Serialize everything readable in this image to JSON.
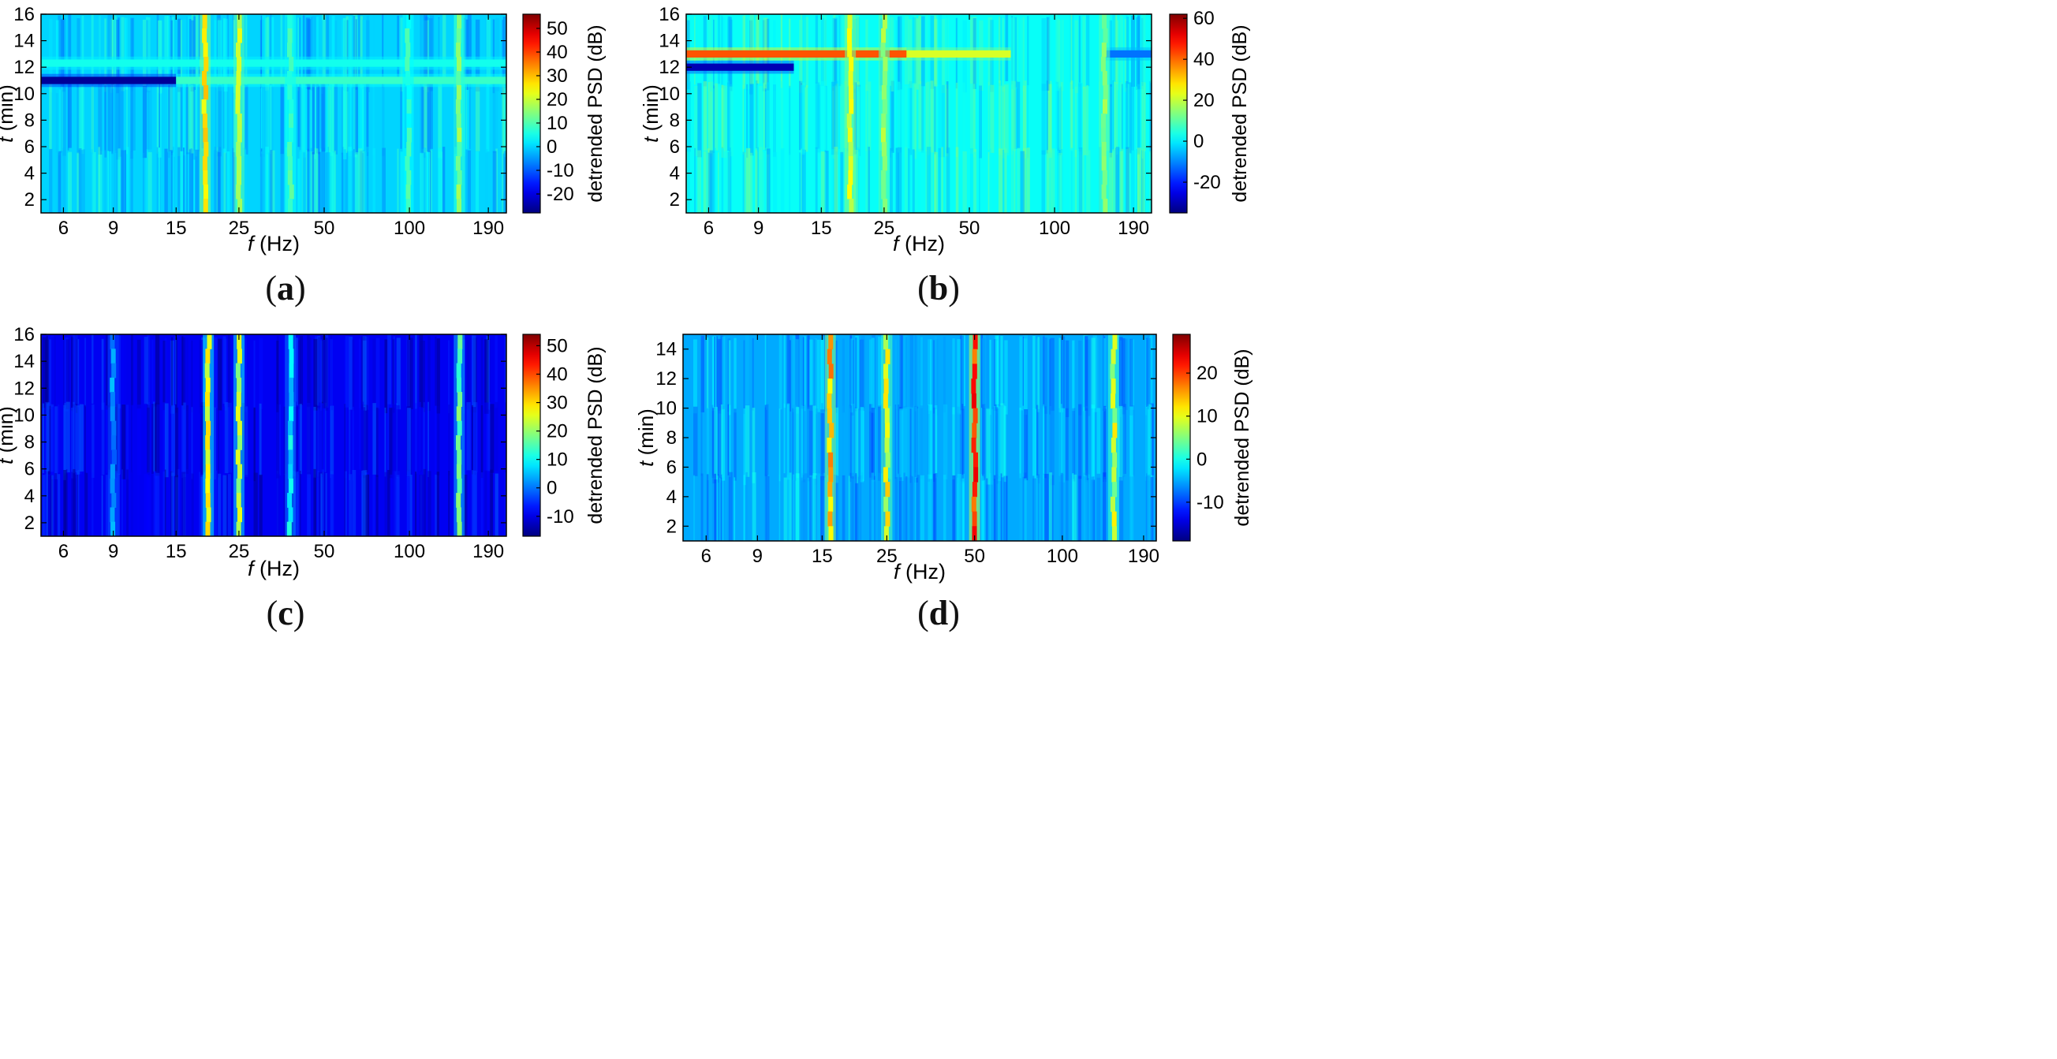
{
  "figure": {
    "panels": [
      {
        "id": "a",
        "caption_open": "(",
        "caption_letter": "a",
        "caption_close": ")",
        "xlabel_var": "f",
        "xlabel_unit": " (Hz)",
        "ylabel_var": "t",
        "ylabel_unit": " (min)",
        "colorbar_label": "detrended PSD (dB)"
      },
      {
        "id": "b",
        "caption_open": "(",
        "caption_letter": "b",
        "caption_close": ")",
        "xlabel_var": "f",
        "xlabel_unit": " (Hz)",
        "ylabel_var": "t",
        "ylabel_unit": " (min)",
        "colorbar_label": "detrended PSD (dB)"
      },
      {
        "id": "c",
        "caption_open": "(",
        "caption_letter": "c",
        "caption_close": ")",
        "xlabel_var": "f",
        "xlabel_unit": " (Hz)",
        "ylabel_var": "t",
        "ylabel_unit": " (min)",
        "colorbar_label": "detrended PSD (dB)"
      },
      {
        "id": "d",
        "caption_open": "(",
        "caption_letter": "d",
        "caption_close": ")",
        "xlabel_var": "f",
        "xlabel_unit": " (Hz)",
        "ylabel_var": "t",
        "ylabel_unit": " (min)",
        "colorbar_label": "detrended PSD (dB)"
      }
    ]
  },
  "chart_data": [
    {
      "type": "heatmap",
      "panel": "a",
      "title": "",
      "xlabel": "f (Hz)",
      "ylabel": "t (min)",
      "xscale": "log",
      "xlim": [
        5,
        220
      ],
      "ylim": [
        1,
        16
      ],
      "xticks": [
        6,
        9,
        15,
        25,
        50,
        100,
        190
      ],
      "yticks": [
        2,
        4,
        6,
        8,
        10,
        12,
        14,
        16
      ],
      "colorbar": {
        "label": "detrended PSD (dB)",
        "range": [
          -28,
          56
        ],
        "ticks": [
          -20,
          -10,
          0,
          10,
          20,
          30,
          40,
          50
        ]
      },
      "background_level_db": 0,
      "spectral_lines": [
        {
          "freq_hz": 19,
          "t_range": [
            1,
            16
          ],
          "level_db": 26
        },
        {
          "freq_hz": 25,
          "t_range": [
            1,
            16
          ],
          "level_db": 20
        },
        {
          "freq_hz": 38,
          "t_range": [
            1,
            16
          ],
          "level_db": 9
        },
        {
          "freq_hz": 99,
          "t_range": [
            1,
            16
          ],
          "level_db": 7
        },
        {
          "freq_hz": 150,
          "t_range": [
            1,
            16
          ],
          "level_db": 14
        }
      ],
      "time_bands": [
        {
          "t": 11,
          "f_range": [
            5,
            15
          ],
          "level_db": -26
        },
        {
          "t": 11,
          "f_range": [
            15,
            220
          ],
          "level_db": 8
        },
        {
          "t": 12.3,
          "f_range": [
            5,
            220
          ],
          "level_db": 5
        }
      ]
    },
    {
      "type": "heatmap",
      "panel": "b",
      "title": "",
      "xlabel": "f (Hz)",
      "ylabel": "t (min)",
      "xscale": "log",
      "xlim": [
        5,
        220
      ],
      "ylim": [
        1,
        16
      ],
      "xticks": [
        6,
        9,
        15,
        25,
        50,
        100,
        190
      ],
      "yticks": [
        2,
        4,
        6,
        8,
        10,
        12,
        14,
        16
      ],
      "colorbar": {
        "label": "detrended PSD (dB)",
        "range": [
          -35,
          62
        ],
        "ticks": [
          -20,
          0,
          20,
          40,
          60
        ]
      },
      "background_level_db": 2,
      "spectral_lines": [
        {
          "freq_hz": 19,
          "t_range": [
            1,
            16
          ],
          "level_db": 22
        },
        {
          "freq_hz": 25,
          "t_range": [
            1,
            16
          ],
          "level_db": 16
        },
        {
          "freq_hz": 150,
          "t_range": [
            1,
            16
          ],
          "level_db": 14
        }
      ],
      "time_bands": [
        {
          "t": 13,
          "f_range": [
            5,
            30
          ],
          "level_db": 42
        },
        {
          "t": 13,
          "f_range": [
            30,
            70
          ],
          "level_db": 22
        },
        {
          "t": 12,
          "f_range": [
            5,
            12
          ],
          "level_db": -30
        },
        {
          "t": 13,
          "f_range": [
            150,
            220
          ],
          "level_db": -12
        }
      ]
    },
    {
      "type": "heatmap",
      "panel": "c",
      "title": "",
      "xlabel": "f (Hz)",
      "ylabel": "t (min)",
      "xscale": "log",
      "xlim": [
        5,
        220
      ],
      "ylim": [
        1,
        16
      ],
      "xticks": [
        6,
        9,
        15,
        25,
        50,
        100,
        190
      ],
      "yticks": [
        2,
        4,
        6,
        8,
        10,
        12,
        14,
        16
      ],
      "colorbar": {
        "label": "detrended PSD (dB)",
        "range": [
          -17,
          54
        ],
        "ticks": [
          -10,
          0,
          10,
          20,
          30,
          40,
          50
        ]
      },
      "background_level_db": -9,
      "spectral_lines": [
        {
          "freq_hz": 9,
          "t_range": [
            1,
            16
          ],
          "level_db": 2
        },
        {
          "freq_hz": 19.5,
          "t_range": [
            1,
            16
          ],
          "level_db": 26
        },
        {
          "freq_hz": 25,
          "t_range": [
            1,
            16
          ],
          "level_db": 22
        },
        {
          "freq_hz": 38,
          "t_range": [
            1,
            16
          ],
          "level_db": 8
        },
        {
          "freq_hz": 150,
          "t_range": [
            1,
            16
          ],
          "level_db": 16
        }
      ],
      "time_bands": []
    },
    {
      "type": "heatmap",
      "panel": "d",
      "title": "",
      "xlabel": "f (Hz)",
      "ylabel": "t (min)",
      "xscale": "log",
      "xlim": [
        5,
        210
      ],
      "ylim": [
        1,
        15
      ],
      "xticks": [
        6,
        9,
        15,
        25,
        50,
        100,
        190
      ],
      "yticks": [
        2,
        4,
        6,
        8,
        10,
        12,
        14
      ],
      "colorbar": {
        "label": "detrended PSD (dB)",
        "range": [
          -19,
          29
        ],
        "ticks": [
          -10,
          0,
          10,
          20
        ]
      },
      "background_level_db": -5,
      "spectral_lines": [
        {
          "freq_hz": 16,
          "t_range": [
            1,
            15
          ],
          "level_db": 14
        },
        {
          "freq_hz": 25,
          "t_range": [
            1,
            15
          ],
          "level_db": 10
        },
        {
          "freq_hz": 50,
          "t_range": [
            1,
            15
          ],
          "level_db": 20
        },
        {
          "freq_hz": 150,
          "t_range": [
            1,
            15
          ],
          "level_db": 8
        }
      ],
      "time_bands": []
    }
  ]
}
